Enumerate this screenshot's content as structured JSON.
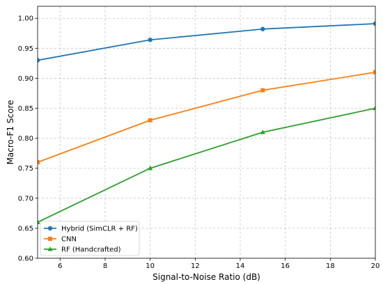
{
  "chart_data": {
    "type": "line",
    "title": "",
    "xlabel": "Signal-to-Noise Ratio (dB)",
    "ylabel": "Macro-F1 Score",
    "xlim": [
      5,
      20
    ],
    "ylim": [
      0.6,
      1.02
    ],
    "x_ticks": [
      6,
      8,
      10,
      12,
      14,
      16,
      18,
      20
    ],
    "y_ticks": [
      0.6,
      0.65,
      0.7,
      0.75,
      0.8,
      0.85,
      0.9,
      0.95,
      1.0
    ],
    "grid": true,
    "legend_position": "lower-left",
    "x": [
      5,
      10,
      15,
      20
    ],
    "series": [
      {
        "name": "Hybrid (SimCLR + RF)",
        "values": [
          0.93,
          0.964,
          0.982,
          0.991
        ],
        "color": "#1f77b4",
        "marker": "circle"
      },
      {
        "name": "CNN",
        "values": [
          0.76,
          0.83,
          0.88,
          0.91
        ],
        "color": "#ff7f0e",
        "marker": "square"
      },
      {
        "name": "RF (Handcrafted)",
        "values": [
          0.66,
          0.75,
          0.81,
          0.85
        ],
        "color": "#2ca02c",
        "marker": "triangle"
      }
    ]
  }
}
